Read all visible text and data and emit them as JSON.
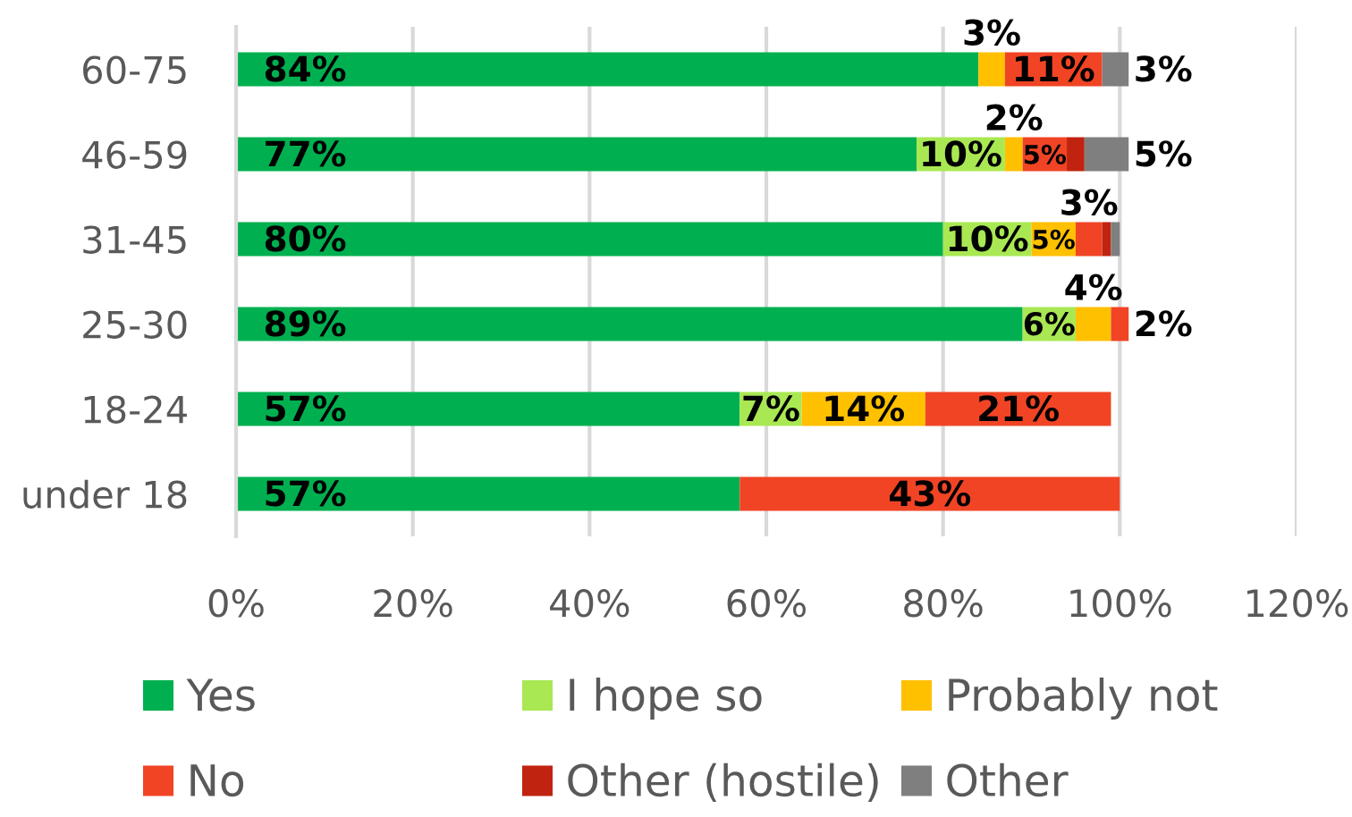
{
  "chart_data": {
    "type": "bar",
    "orientation": "horizontal",
    "stacked": true,
    "categories": [
      "60-75",
      "46-59",
      "31-45",
      "25-30",
      "18-24",
      "under 18"
    ],
    "series": [
      {
        "name": "Yes",
        "color": "#00b050",
        "values": [
          84,
          77,
          80,
          89,
          57,
          57
        ],
        "value_labels": [
          "84%",
          "77%",
          "80%",
          "89%",
          "57%",
          "57%"
        ]
      },
      {
        "name": "I hope so",
        "color": "#a9e853",
        "values": [
          null,
          10,
          10,
          6,
          7,
          null
        ],
        "value_labels": [
          null,
          "10%",
          "10%",
          "6%",
          "7%",
          null
        ]
      },
      {
        "name": "Probably not",
        "color": "#ffc000",
        "values": [
          3,
          2,
          5,
          4,
          14,
          null
        ],
        "value_labels": [
          "3%",
          "2%",
          "5%",
          "4%",
          "14%",
          null
        ]
      },
      {
        "name": "No",
        "color": "#f04425",
        "values": [
          11,
          5,
          3,
          2,
          21,
          43
        ],
        "value_labels": [
          "11%",
          "5%",
          "3%",
          "2%",
          "21%",
          "43%"
        ]
      },
      {
        "name": "Other (hostile)",
        "color": "#c0230f",
        "values": [
          null,
          2,
          1,
          null,
          null,
          null
        ]
      },
      {
        "name": "Other",
        "color": "#7f7f7f",
        "values": [
          3,
          5,
          1,
          null,
          null,
          null
        ],
        "value_labels": [
          "3%",
          "5%",
          null,
          null,
          null,
          null
        ]
      }
    ],
    "xlim": [
      0,
      120
    ],
    "xticks": [
      {
        "value": 0,
        "label": "0%"
      },
      {
        "value": 20,
        "label": "20%"
      },
      {
        "value": 40,
        "label": "40%"
      },
      {
        "value": 60,
        "label": "60%"
      },
      {
        "value": 80,
        "label": "80%"
      },
      {
        "value": 100,
        "label": "100%"
      },
      {
        "value": 120,
        "label": "120%"
      }
    ],
    "grid": "x",
    "legend": "bottom"
  }
}
